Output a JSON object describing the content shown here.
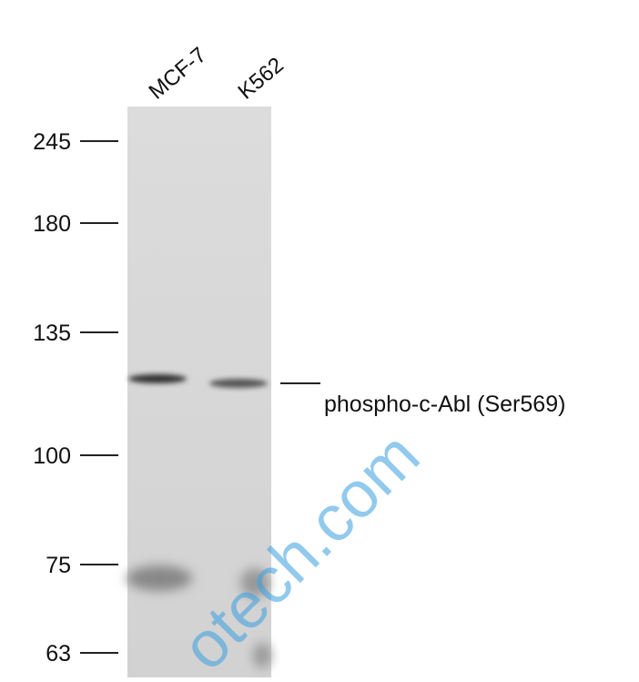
{
  "lanes": [
    "MCF-7",
    "K562"
  ],
  "markers": [
    "245",
    "180",
    "135",
    "100",
    "75",
    "63"
  ],
  "band_label": "phospho-c-Abl (Ser569)",
  "watermark": "otech.com"
}
